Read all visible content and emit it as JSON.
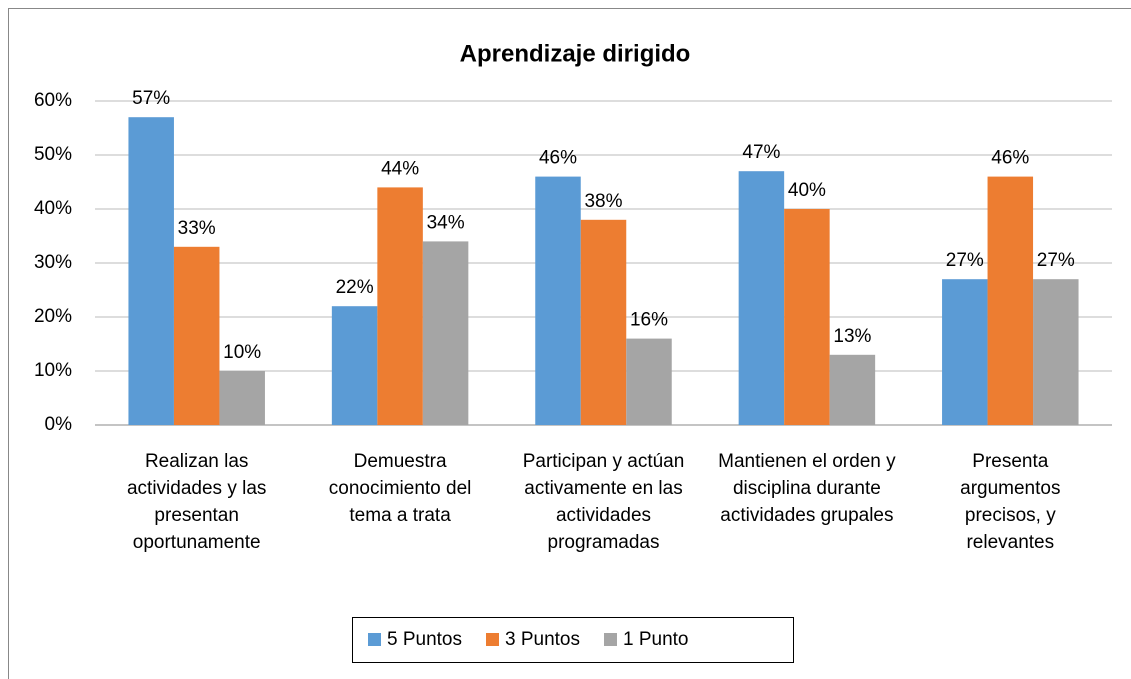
{
  "chart_data": {
    "type": "bar",
    "title": "Aprendizaje dirigido",
    "categories": [
      "Realizan las actividades y las presentan oportunamente",
      "Demuestra conocimiento del tema a trata",
      "Participan y actúan activamente en las actividades programadas",
      "Mantienen el orden y disciplina durante actividades grupales",
      "Presenta argumentos precisos, y relevantes"
    ],
    "series": [
      {
        "name": "5 Puntos",
        "color": "#5b9bd5",
        "values": [
          57,
          22,
          46,
          47,
          27
        ],
        "value_labels": [
          "57%",
          "22%",
          "46%",
          "47%",
          "27%"
        ]
      },
      {
        "name": "3 Puntos",
        "color": "#ed7d31",
        "values": [
          33,
          44,
          38,
          40,
          46
        ],
        "value_labels": [
          "33%",
          "44%",
          "38%",
          "40%",
          "46%"
        ]
      },
      {
        "name": "1 Punto",
        "color": "#a5a5a5",
        "values": [
          10,
          34,
          16,
          13,
          27
        ],
        "value_labels": [
          "10%",
          "34%",
          "16%",
          "13%",
          "27%"
        ]
      }
    ],
    "ylim": [
      0,
      60
    ],
    "yticks": [
      {
        "value": 0,
        "label": "0%"
      },
      {
        "value": 10,
        "label": "10%"
      },
      {
        "value": 20,
        "label": "20%"
      },
      {
        "value": 30,
        "label": "30%"
      },
      {
        "value": 40,
        "label": "40%"
      },
      {
        "value": 50,
        "label": "50%"
      },
      {
        "value": 60,
        "label": "60%"
      }
    ],
    "grid": true,
    "legend": "bottom"
  }
}
